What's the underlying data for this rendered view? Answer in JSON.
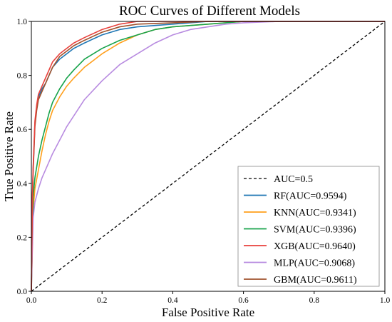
{
  "chart_data": {
    "type": "line",
    "title": "ROC Curves of Different Models",
    "xlabel": "False Positive Rate",
    "ylabel": "True Positive Rate",
    "xlim": [
      0.0,
      1.0
    ],
    "ylim": [
      0.0,
      1.0
    ],
    "xticks": [
      "0.0",
      "0.2",
      "0.4",
      "0.6",
      "0.8",
      "1.0"
    ],
    "yticks": [
      "0.0",
      "0.2",
      "0.4",
      "0.6",
      "0.8",
      "1.0"
    ],
    "grid": false,
    "legend_position": "lower-right",
    "series": [
      {
        "name": "AUC=0.5",
        "color": "#000000",
        "dashed": true,
        "x": [
          0,
          1
        ],
        "y": [
          0,
          1
        ]
      },
      {
        "name": "RF(AUC=0.9594)",
        "color": "#1f77b4",
        "x": [
          0,
          0.003,
          0.005,
          0.008,
          0.01,
          0.015,
          0.02,
          0.03,
          0.04,
          0.05,
          0.06,
          0.08,
          0.1,
          0.12,
          0.15,
          0.2,
          0.25,
          0.3,
          0.4,
          0.5,
          0.6,
          0.7,
          0.8,
          0.9,
          1.0
        ],
        "y": [
          0,
          0.35,
          0.45,
          0.55,
          0.62,
          0.68,
          0.72,
          0.75,
          0.77,
          0.8,
          0.83,
          0.86,
          0.88,
          0.9,
          0.92,
          0.95,
          0.97,
          0.98,
          0.99,
          1.0,
          1.0,
          1.0,
          1.0,
          1.0,
          1.0
        ]
      },
      {
        "name": "KNN(AUC=0.9341)",
        "color": "#ff9f1c",
        "x": [
          0,
          0.005,
          0.01,
          0.02,
          0.03,
          0.04,
          0.05,
          0.06,
          0.08,
          0.1,
          0.12,
          0.15,
          0.2,
          0.25,
          0.3,
          0.35,
          0.4,
          0.5,
          0.6,
          0.7,
          0.8,
          0.9,
          1.0
        ],
        "y": [
          0,
          0.3,
          0.38,
          0.45,
          0.52,
          0.58,
          0.63,
          0.67,
          0.72,
          0.76,
          0.79,
          0.83,
          0.88,
          0.92,
          0.95,
          0.97,
          0.98,
          0.99,
          1.0,
          1.0,
          1.0,
          1.0,
          1.0
        ]
      },
      {
        "name": "SVM(AUC=0.9396)",
        "color": "#17a34a",
        "x": [
          0,
          0.005,
          0.01,
          0.02,
          0.03,
          0.04,
          0.05,
          0.06,
          0.08,
          0.1,
          0.12,
          0.15,
          0.2,
          0.25,
          0.3,
          0.35,
          0.4,
          0.5,
          0.6,
          0.7,
          0.8,
          0.9,
          1.0
        ],
        "y": [
          0,
          0.35,
          0.42,
          0.5,
          0.56,
          0.61,
          0.66,
          0.7,
          0.75,
          0.79,
          0.82,
          0.86,
          0.9,
          0.93,
          0.95,
          0.97,
          0.98,
          0.99,
          1.0,
          1.0,
          1.0,
          1.0,
          1.0
        ]
      },
      {
        "name": "XGB(AUC=0.9640)",
        "color": "#e8413c",
        "x": [
          0,
          0.003,
          0.005,
          0.008,
          0.01,
          0.015,
          0.02,
          0.03,
          0.04,
          0.05,
          0.06,
          0.08,
          0.1,
          0.12,
          0.15,
          0.2,
          0.25,
          0.3,
          0.4,
          0.5,
          0.6,
          0.7,
          0.8,
          0.9,
          1.0
        ],
        "y": [
          0,
          0.36,
          0.46,
          0.56,
          0.63,
          0.69,
          0.73,
          0.76,
          0.79,
          0.82,
          0.85,
          0.88,
          0.9,
          0.92,
          0.94,
          0.97,
          0.99,
          1.0,
          1.0,
          1.0,
          1.0,
          1.0,
          1.0,
          1.0,
          1.0
        ]
      },
      {
        "name": "MLP(AUC=0.9068)",
        "color": "#b88be0",
        "x": [
          0,
          0.005,
          0.01,
          0.02,
          0.03,
          0.04,
          0.05,
          0.06,
          0.08,
          0.1,
          0.12,
          0.15,
          0.2,
          0.25,
          0.3,
          0.35,
          0.4,
          0.45,
          0.5,
          0.55,
          0.6,
          0.7,
          0.8,
          0.9,
          1.0
        ],
        "y": [
          0,
          0.27,
          0.33,
          0.38,
          0.42,
          0.45,
          0.48,
          0.51,
          0.56,
          0.61,
          0.65,
          0.71,
          0.78,
          0.84,
          0.88,
          0.92,
          0.95,
          0.97,
          0.98,
          0.99,
          0.995,
          1.0,
          1.0,
          1.0,
          1.0
        ]
      },
      {
        "name": "GBM(AUC=0.9611)",
        "color": "#a0522d",
        "x": [
          0,
          0.003,
          0.005,
          0.008,
          0.01,
          0.015,
          0.02,
          0.03,
          0.04,
          0.05,
          0.06,
          0.08,
          0.1,
          0.12,
          0.15,
          0.2,
          0.25,
          0.3,
          0.4,
          0.5,
          0.6,
          0.7,
          0.8,
          0.9,
          1.0
        ],
        "y": [
          0,
          0.34,
          0.44,
          0.54,
          0.61,
          0.67,
          0.71,
          0.74,
          0.77,
          0.8,
          0.83,
          0.87,
          0.89,
          0.91,
          0.93,
          0.96,
          0.98,
          0.99,
          0.995,
          1.0,
          1.0,
          1.0,
          1.0,
          1.0,
          1.0
        ]
      }
    ]
  }
}
